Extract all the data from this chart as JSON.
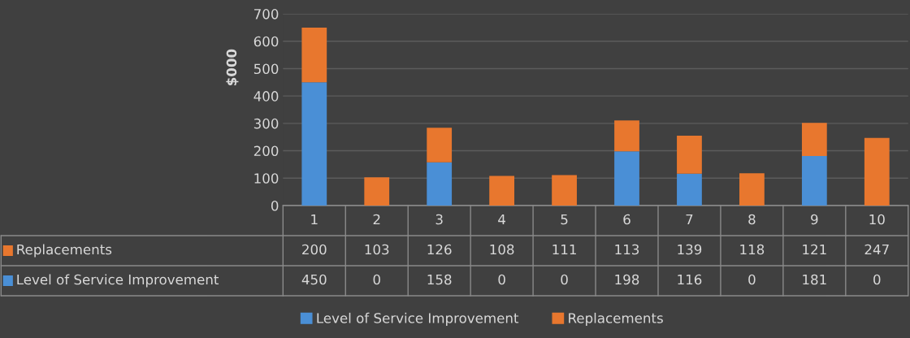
{
  "chart_data": {
    "type": "bar",
    "stacked": true,
    "ylabel": "$000",
    "categories": [
      "1",
      "2",
      "3",
      "4",
      "5",
      "6",
      "7",
      "8",
      "9",
      "10"
    ],
    "series": [
      {
        "name": "Level of Service Improvement",
        "color": "#4a8fd6",
        "values": [
          450,
          0,
          158,
          0,
          0,
          198,
          116,
          0,
          181,
          0
        ]
      },
      {
        "name": "Replacements",
        "color": "#e8772e",
        "values": [
          200,
          103,
          126,
          108,
          111,
          113,
          139,
          118,
          121,
          247
        ]
      }
    ],
    "ylim": [
      0,
      700
    ],
    "yticks": [
      0,
      100,
      200,
      300,
      400,
      500,
      600,
      700
    ],
    "grid": "y",
    "legend": "bottom",
    "data_labels": true
  }
}
